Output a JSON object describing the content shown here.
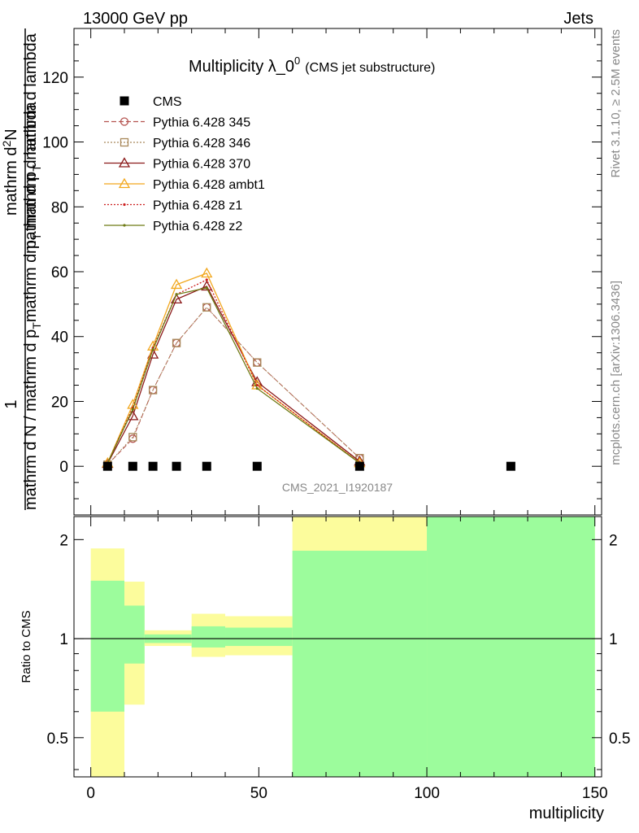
{
  "header": {
    "energy_label": "13000 GeV pp",
    "process_label": "Jets"
  },
  "side_labels": {
    "rivet": "Rivet 3.1.10, ≥ 2.5M events",
    "mcplots": "mcplots.cern.ch [arXiv:1306.3436]"
  },
  "analysis_id": "CMS_2021_I1920187",
  "main": {
    "title_main": "Multiplicity λ_0",
    "title_sup": "0",
    "title_sub": "(CMS jet substructure)",
    "ylabel": {
      "num_top": "1",
      "den_top": "mathrm d N / mathrm d p",
      "den_sub": "T",
      "den_rest": " mathrm d lambda",
      "frac_num_a": "mathrm d",
      "frac_num_sup": "2",
      "frac_num_b": "N",
      "frac_den_a": "mathrm d p",
      "frac_den_sub": "T",
      "frac_den_b": " mathrm d lambda"
    }
  },
  "ratio": {
    "ylabel": "Ratio to CMS"
  },
  "xlabel": "multiplicity",
  "colors": {
    "cms": "#000000",
    "p345": "#b5534f",
    "p346": "#a8885a",
    "p370": "#8b1a1a",
    "ambt1": "#f2a81f",
    "z1": "#cc1f1f",
    "z2": "#6e7a14",
    "band_inner": "#9cfc9c",
    "band_outer": "#fcfc9c"
  },
  "chart_data": [
    {
      "type": "line",
      "panel": "main",
      "xlim": [
        -5,
        152
      ],
      "ylim": [
        -15,
        135
      ],
      "y_ticks": [
        0,
        20,
        40,
        60,
        80,
        100,
        120
      ],
      "x_ticks": [
        0,
        50,
        100,
        150
      ],
      "legend_position": "top-left",
      "series": [
        {
          "name": "CMS",
          "marker": "square",
          "x": [
            5,
            12.5,
            18.5,
            25.5,
            34.5,
            49.5,
            80,
            125
          ],
          "y": [
            0,
            0,
            0,
            0,
            0,
            0,
            0,
            0
          ]
        },
        {
          "name": "Pythia 6.428 345",
          "marker": "circle",
          "dash": "dashed",
          "x": [
            5,
            12.5,
            18.5,
            25.5,
            34.5,
            49.5,
            80
          ],
          "y": [
            0.5,
            8.5,
            23.5,
            38,
            49,
            32,
            2.5
          ]
        },
        {
          "name": "Pythia 6.428 346",
          "marker": "square-open",
          "dash": "dotted",
          "x": [
            5,
            12.5,
            18.5,
            25.5,
            34.5,
            49.5,
            80
          ],
          "y": [
            0.5,
            9,
            23.5,
            38,
            49,
            32,
            2.5
          ]
        },
        {
          "name": "Pythia 6.428 370",
          "marker": "triangle",
          "dash": "solid",
          "x": [
            5,
            12.5,
            18.5,
            25.5,
            34.5,
            49.5,
            80
          ],
          "y": [
            0.8,
            15.5,
            34.5,
            51.5,
            55.5,
            26,
            1.5
          ]
        },
        {
          "name": "Pythia 6.428 ambt1",
          "marker": "triangle",
          "dash": "solid",
          "x": [
            5,
            12.5,
            18.5,
            25.5,
            34.5,
            49.5,
            80
          ],
          "y": [
            1,
            19,
            37,
            56,
            59.5,
            25,
            1
          ]
        },
        {
          "name": "Pythia 6.428 z1",
          "marker": "dot",
          "dash": "dotted",
          "x": [
            5,
            12.5,
            18.5,
            25.5,
            34.5,
            49.5,
            80
          ],
          "y": [
            1,
            18,
            36.5,
            53,
            57.5,
            25,
            1
          ]
        },
        {
          "name": "Pythia 6.428 z2",
          "marker": "dot",
          "dash": "solid",
          "x": [
            5,
            12.5,
            18.5,
            25.5,
            34.5,
            49.5,
            80
          ],
          "y": [
            1,
            17.5,
            36,
            53,
            55,
            24,
            1
          ]
        }
      ]
    },
    {
      "type": "area",
      "panel": "ratio",
      "xlim": [
        -5,
        152
      ],
      "ylim": [
        0.38,
        2.35
      ],
      "y_ticks": [
        0.5,
        1,
        2
      ],
      "reference_line": 1,
      "bins": [
        {
          "x0": 0,
          "x1": 10,
          "inner": [
            0.6,
            1.5
          ],
          "outer": [
            0.3,
            1.88
          ]
        },
        {
          "x0": 10,
          "x1": 16,
          "inner": [
            0.84,
            1.26
          ],
          "outer": [
            0.63,
            1.49
          ]
        },
        {
          "x0": 16,
          "x1": 30,
          "inner": [
            0.97,
            1.03
          ],
          "outer": [
            0.95,
            1.06
          ]
        },
        {
          "x0": 30,
          "x1": 40,
          "inner": [
            0.94,
            1.09
          ],
          "outer": [
            0.88,
            1.19
          ]
        },
        {
          "x0": 40,
          "x1": 60,
          "inner": [
            0.95,
            1.08
          ],
          "outer": [
            0.89,
            1.17
          ]
        },
        {
          "x0": 60,
          "x1": 100,
          "inner": [
            0.3,
            1.85
          ],
          "outer": [
            0.3,
            2.4
          ]
        },
        {
          "x0": 100,
          "x1": 150,
          "inner": [
            0.3,
            2.4
          ],
          "outer": [
            0.3,
            2.4
          ]
        }
      ]
    }
  ]
}
